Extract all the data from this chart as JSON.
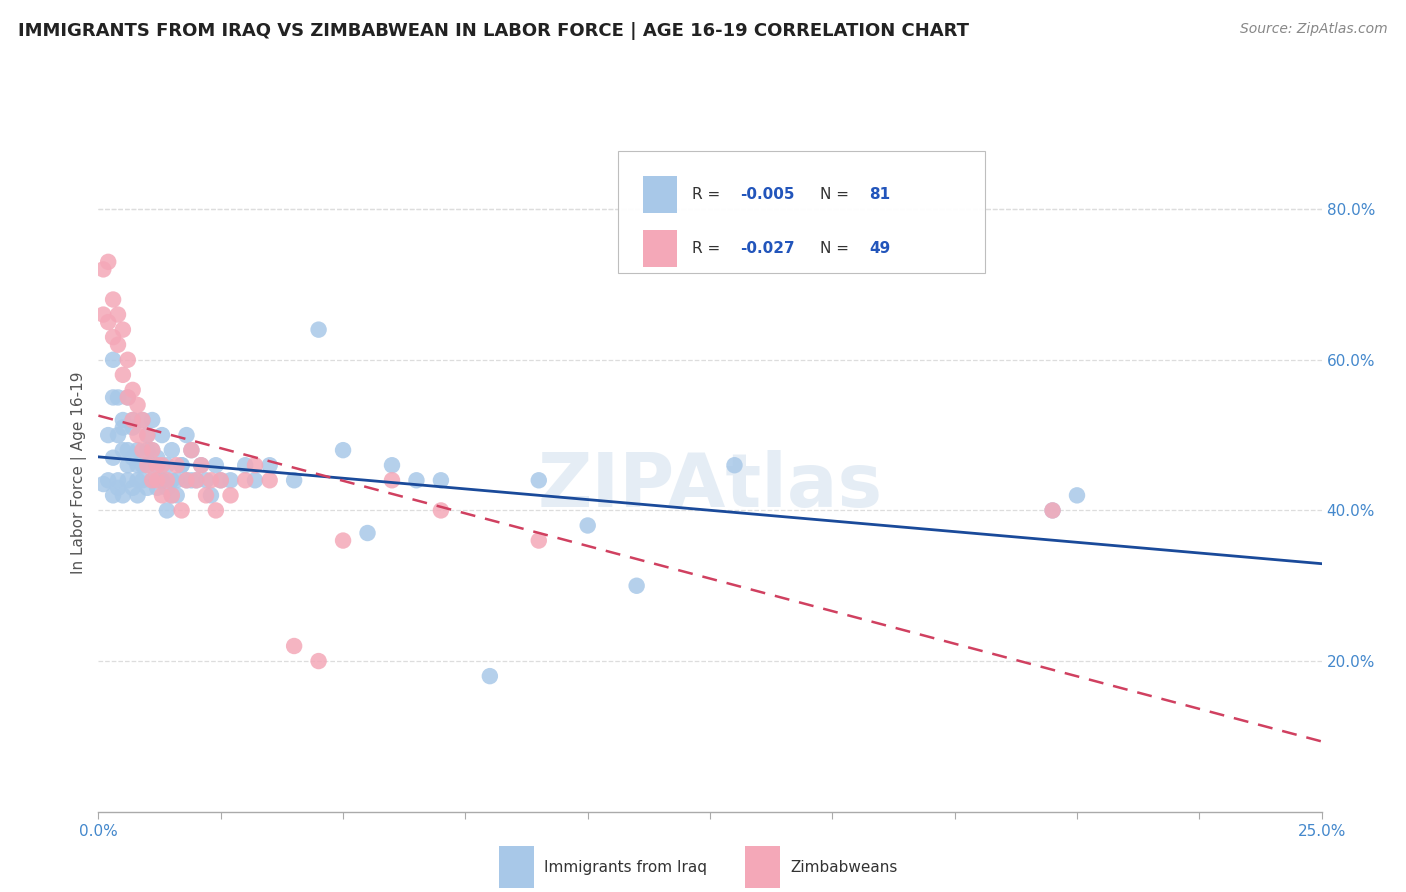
{
  "title": "IMMIGRANTS FROM IRAQ VS ZIMBABWEAN IN LABOR FORCE | AGE 16-19 CORRELATION CHART",
  "source": "Source: ZipAtlas.com",
  "ylabel": "In Labor Force | Age 16-19",
  "xlim": [
    0.0,
    0.25
  ],
  "ylim": [
    0.0,
    0.9
  ],
  "xticks": [
    0.0,
    0.025,
    0.05,
    0.075,
    0.1,
    0.125,
    0.15,
    0.175,
    0.2,
    0.225,
    0.25
  ],
  "xticklabels": [
    "0.0%",
    "",
    "",
    "",
    "",
    "",
    "",
    "",
    "",
    "",
    "25.0%"
  ],
  "ytick_right_values": [
    0.2,
    0.4,
    0.6,
    0.8
  ],
  "ytick_right_labels": [
    "20.0%",
    "40.0%",
    "60.0%",
    "80.0%"
  ],
  "iraq_color": "#a8c8e8",
  "zimbabwe_color": "#f4a8b8",
  "iraq_line_color": "#1a4a9a",
  "zimbabwe_line_color": "#d04060",
  "watermark": "ZIPAtlas",
  "iraq_scatter_x": [
    0.001,
    0.002,
    0.002,
    0.003,
    0.003,
    0.003,
    0.004,
    0.004,
    0.004,
    0.005,
    0.005,
    0.005,
    0.006,
    0.006,
    0.006,
    0.007,
    0.007,
    0.007,
    0.008,
    0.008,
    0.008,
    0.009,
    0.009,
    0.01,
    0.01,
    0.01,
    0.011,
    0.011,
    0.012,
    0.012,
    0.013,
    0.013,
    0.014,
    0.014,
    0.015,
    0.015,
    0.016,
    0.017,
    0.018,
    0.019,
    0.02,
    0.021,
    0.022,
    0.023,
    0.024,
    0.025,
    0.027,
    0.03,
    0.032,
    0.035,
    0.04,
    0.045,
    0.05,
    0.055,
    0.06,
    0.065,
    0.07,
    0.08,
    0.09,
    0.1,
    0.11,
    0.13,
    0.195,
    0.2,
    0.003,
    0.004,
    0.005,
    0.006,
    0.007,
    0.008,
    0.009,
    0.01,
    0.011,
    0.012,
    0.013,
    0.014,
    0.015,
    0.016,
    0.017,
    0.018,
    0.019
  ],
  "iraq_scatter_y": [
    0.435,
    0.44,
    0.5,
    0.42,
    0.47,
    0.55,
    0.43,
    0.5,
    0.44,
    0.42,
    0.48,
    0.52,
    0.44,
    0.46,
    0.55,
    0.43,
    0.47,
    0.51,
    0.44,
    0.48,
    0.42,
    0.46,
    0.52,
    0.43,
    0.46,
    0.5,
    0.44,
    0.48,
    0.43,
    0.47,
    0.44,
    0.5,
    0.43,
    0.46,
    0.42,
    0.48,
    0.44,
    0.46,
    0.44,
    0.48,
    0.44,
    0.46,
    0.44,
    0.42,
    0.46,
    0.44,
    0.44,
    0.46,
    0.44,
    0.46,
    0.44,
    0.64,
    0.48,
    0.37,
    0.46,
    0.44,
    0.44,
    0.18,
    0.44,
    0.38,
    0.3,
    0.46,
    0.4,
    0.42,
    0.6,
    0.55,
    0.51,
    0.48,
    0.52,
    0.46,
    0.44,
    0.48,
    0.52,
    0.46,
    0.44,
    0.4,
    0.44,
    0.42,
    0.46,
    0.5,
    0.44
  ],
  "zim_scatter_x": [
    0.001,
    0.001,
    0.002,
    0.002,
    0.003,
    0.003,
    0.004,
    0.004,
    0.005,
    0.005,
    0.006,
    0.006,
    0.007,
    0.007,
    0.008,
    0.008,
    0.009,
    0.009,
    0.01,
    0.01,
    0.011,
    0.011,
    0.012,
    0.012,
    0.013,
    0.013,
    0.014,
    0.015,
    0.016,
    0.017,
    0.018,
    0.019,
    0.02,
    0.021,
    0.022,
    0.023,
    0.024,
    0.025,
    0.027,
    0.03,
    0.032,
    0.035,
    0.04,
    0.045,
    0.05,
    0.06,
    0.07,
    0.09,
    0.195
  ],
  "zim_scatter_y": [
    0.66,
    0.72,
    0.65,
    0.73,
    0.63,
    0.68,
    0.62,
    0.66,
    0.58,
    0.64,
    0.55,
    0.6,
    0.52,
    0.56,
    0.5,
    0.54,
    0.48,
    0.52,
    0.46,
    0.5,
    0.44,
    0.48,
    0.44,
    0.46,
    0.42,
    0.46,
    0.44,
    0.42,
    0.46,
    0.4,
    0.44,
    0.48,
    0.44,
    0.46,
    0.42,
    0.44,
    0.4,
    0.44,
    0.42,
    0.44,
    0.46,
    0.44,
    0.22,
    0.2,
    0.36,
    0.44,
    0.4,
    0.36,
    0.4
  ]
}
